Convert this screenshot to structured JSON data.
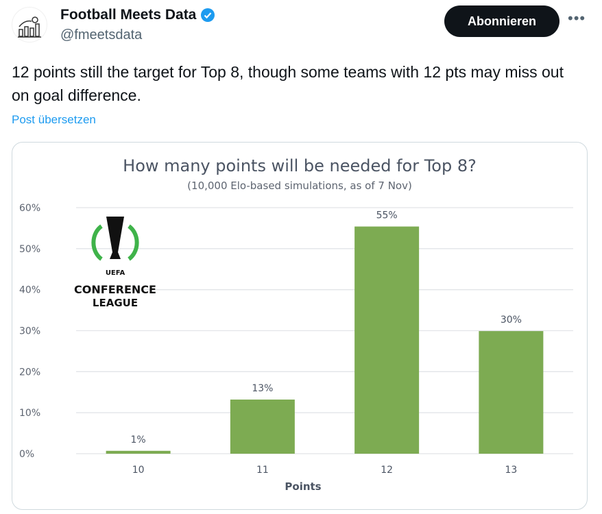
{
  "author": {
    "name": "Football Meets Data",
    "handle": "@fmeetsdata",
    "verified": true,
    "avatar_icon": "chart-football-icon"
  },
  "follow_label": "Abonnieren",
  "more_icon": "more-icon",
  "post_text": "12 points still the target for Top 8, though some teams with 12 pts may miss out on goal difference.",
  "translate_label": "Post übersetzen",
  "logo": {
    "top": "UEFA",
    "line1": "CONFERENCE",
    "line2": "LEAGUE"
  },
  "chart_data": {
    "type": "bar",
    "title": "How many points will be needed for Top 8?",
    "subtitle": "(10,000 Elo-based simulations, as of 7 Nov)",
    "xlabel": "Points",
    "ylabel": "",
    "categories": [
      "10",
      "11",
      "12",
      "13"
    ],
    "values": [
      0.7,
      13.2,
      55.4,
      29.9
    ],
    "data_labels": [
      "1%",
      "13%",
      "55%",
      "30%"
    ],
    "ylim": [
      0,
      60
    ],
    "yticks": [
      "0%",
      "10%",
      "20%",
      "30%",
      "40%",
      "50%",
      "60%"
    ],
    "grid": true,
    "bar_color": "#7dab52"
  }
}
